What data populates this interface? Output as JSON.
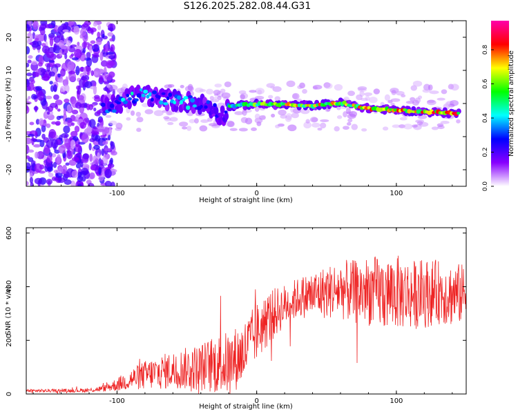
{
  "title": "S126.2025.282.08.44.G31",
  "chart_data": [
    {
      "type": "heatmap",
      "xlabel": "Height of straight line (km)",
      "ylabel": "Frequency (Hz)",
      "xlim": [
        -165,
        150
      ],
      "ylim": [
        -25,
        25
      ],
      "xticks": [
        -100,
        0,
        100
      ],
      "yticks": [
        -20,
        -10,
        0,
        10,
        20
      ],
      "colorbar": {
        "label": "Normalized spectral amplitude",
        "range": [
          0,
          0.97
        ],
        "ticks": [
          0.0,
          0.2,
          0.4,
          0.6,
          0.8
        ],
        "tick_labels": [
          "0.0",
          "0.2",
          "0.4",
          "0.6",
          "0.8"
        ],
        "colors": [
          "#ffffff",
          "#8800ff",
          "#0000ff",
          "#00ffff",
          "#00ff00",
          "#ffff00",
          "#ff0000",
          "#ff00aa"
        ]
      },
      "ridge": {
        "x": [
          -110,
          -100,
          -90,
          -80,
          -70,
          -60,
          -50,
          -40,
          -30,
          -25,
          -20,
          -10,
          0,
          20,
          40,
          60,
          80,
          100,
          120,
          145
        ],
        "y": [
          -1,
          -0.5,
          2,
          3,
          1.5,
          1,
          0.5,
          0,
          -2,
          -4,
          -1,
          -0.5,
          -0.2,
          -0.4,
          -0.6,
          0.2,
          -1.5,
          -2,
          -2.5,
          -3
        ],
        "amplitude": [
          0.35,
          0.4,
          0.5,
          0.45,
          0.4,
          0.45,
          0.5,
          0.35,
          0.3,
          0.25,
          0.55,
          0.65,
          0.75,
          0.8,
          0.85,
          0.8,
          0.85,
          0.9,
          0.9,
          0.9
        ]
      },
      "noise_region": [
        -165,
        -110
      ]
    },
    {
      "type": "line",
      "xlabel": "Height of straight line (km)",
      "ylabel": "SNR (10 * v/v)",
      "xlim": [
        -165,
        150
      ],
      "ylim": [
        0,
        620
      ],
      "xticks": [
        -100,
        0,
        100
      ],
      "yticks": [
        0,
        200,
        400,
        600
      ],
      "color": "#ee2222",
      "series": [
        {
          "name": "SNR",
          "x": [
            -165,
            -140,
            -120,
            -110,
            -100,
            -90,
            -80,
            -70,
            -60,
            -50,
            -40,
            -30,
            -20,
            -10,
            0,
            10,
            20,
            30,
            40,
            50,
            60,
            70,
            80,
            90,
            100,
            110,
            120,
            130,
            140,
            150
          ],
          "y": [
            12,
            12,
            14,
            20,
            35,
            55,
            70,
            80,
            90,
            95,
            100,
            110,
            115,
            150,
            230,
            290,
            330,
            360,
            370,
            380,
            390,
            380,
            385,
            375,
            380,
            370,
            375,
            380,
            370,
            375
          ],
          "spread": [
            6,
            6,
            8,
            12,
            25,
            40,
            55,
            65,
            70,
            80,
            90,
            110,
            120,
            120,
            110,
            100,
            80,
            75,
            90,
            100,
            110,
            120,
            130,
            140,
            140,
            130,
            130,
            120,
            120,
            110
          ]
        }
      ]
    }
  ]
}
